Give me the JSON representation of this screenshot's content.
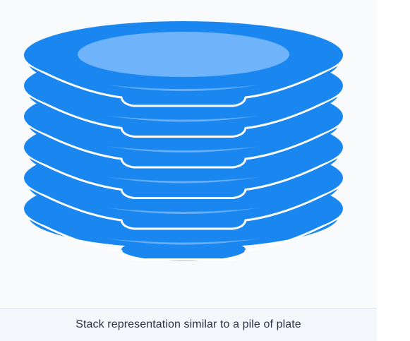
{
  "caption": "Stack representation similar to a pile of plate",
  "illustration": {
    "subject": "stack-of-plates",
    "plate_count": 6
  },
  "colors": {
    "plate_rim": "#1a87f0",
    "plate_center": "#6fb3fb",
    "plate_separator": "#ffffff",
    "background": "#f8fafc"
  }
}
